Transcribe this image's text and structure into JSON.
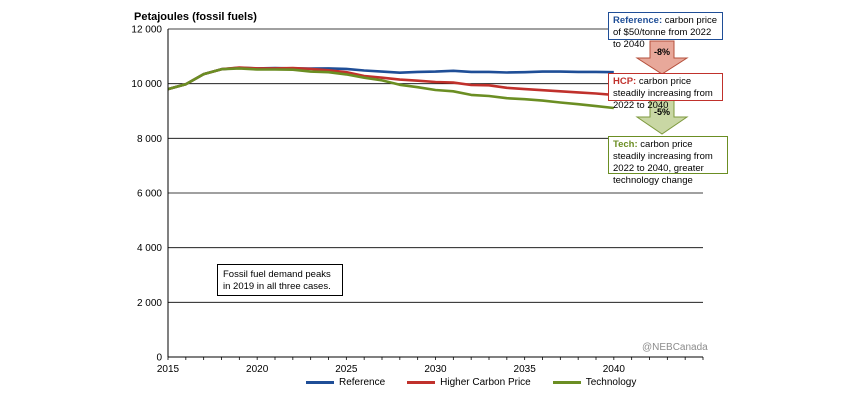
{
  "chart_data": {
    "type": "line",
    "ylabel": "Petajoules (fossil fuels)",
    "ylim": [
      0,
      12000
    ],
    "yticks": [
      0,
      2000,
      4000,
      6000,
      8000,
      10000,
      12000
    ],
    "ytick_labels": [
      "0",
      "2 000",
      "4 000",
      "6 000",
      "8 000",
      "10 000",
      "12 000"
    ],
    "xlim": [
      2015,
      2045
    ],
    "xticks": [
      2015,
      2020,
      2025,
      2030,
      2035,
      2040
    ],
    "x": [
      2015,
      2016,
      2017,
      2018,
      2019,
      2020,
      2021,
      2022,
      2023,
      2024,
      2025,
      2026,
      2027,
      2028,
      2029,
      2030,
      2031,
      2032,
      2033,
      2034,
      2035,
      2036,
      2037,
      2038,
      2039,
      2040
    ],
    "series": [
      {
        "name": "Reference",
        "color": "#1f4e97",
        "values": [
          9800,
          9980,
          10350,
          10530,
          10580,
          10560,
          10570,
          10560,
          10550,
          10560,
          10540,
          10480,
          10440,
          10400,
          10430,
          10440,
          10470,
          10430,
          10430,
          10410,
          10420,
          10440,
          10440,
          10430,
          10430,
          10420
        ]
      },
      {
        "name": "Higher Carbon Price",
        "color": "#c0312c",
        "values": [
          9800,
          9980,
          10350,
          10530,
          10590,
          10560,
          10560,
          10570,
          10540,
          10490,
          10420,
          10280,
          10220,
          10150,
          10110,
          10060,
          10040,
          9950,
          9940,
          9850,
          9800,
          9760,
          9720,
          9680,
          9640,
          9590
        ]
      },
      {
        "name": "Technology",
        "color": "#6b8e23",
        "values": [
          9800,
          9980,
          10350,
          10530,
          10560,
          10520,
          10520,
          10510,
          10440,
          10420,
          10340,
          10220,
          10120,
          9960,
          9870,
          9770,
          9720,
          9590,
          9550,
          9470,
          9430,
          9380,
          9310,
          9250,
          9180,
          9110
        ]
      }
    ]
  },
  "annotations": {
    "reference": {
      "lead": "Reference:",
      "text": "carbon price of $50/tonne from 2022 to 2040"
    },
    "hcp": {
      "lead": "HCP:",
      "text": "carbon price steadily increasing from 2022 to 2040"
    },
    "tech": {
      "lead": "Tech:",
      "text": "carbon price steadily increasing from 2022 to 2040, greater technology change"
    },
    "arrow1_label": "-8%",
    "arrow2_label": "-5%",
    "note": "Fossil fuel demand peaks in 2019 in all three cases.",
    "watermark": "@NEBCanada"
  },
  "colors": {
    "reference": "#1f4e97",
    "hcp": "#c0312c",
    "tech": "#6b8e23",
    "arrow1_fill": "#e8a89a",
    "arrow1_stroke": "#b5503c",
    "arrow2_fill": "#c9d7a4",
    "arrow2_stroke": "#7e9a3e"
  }
}
